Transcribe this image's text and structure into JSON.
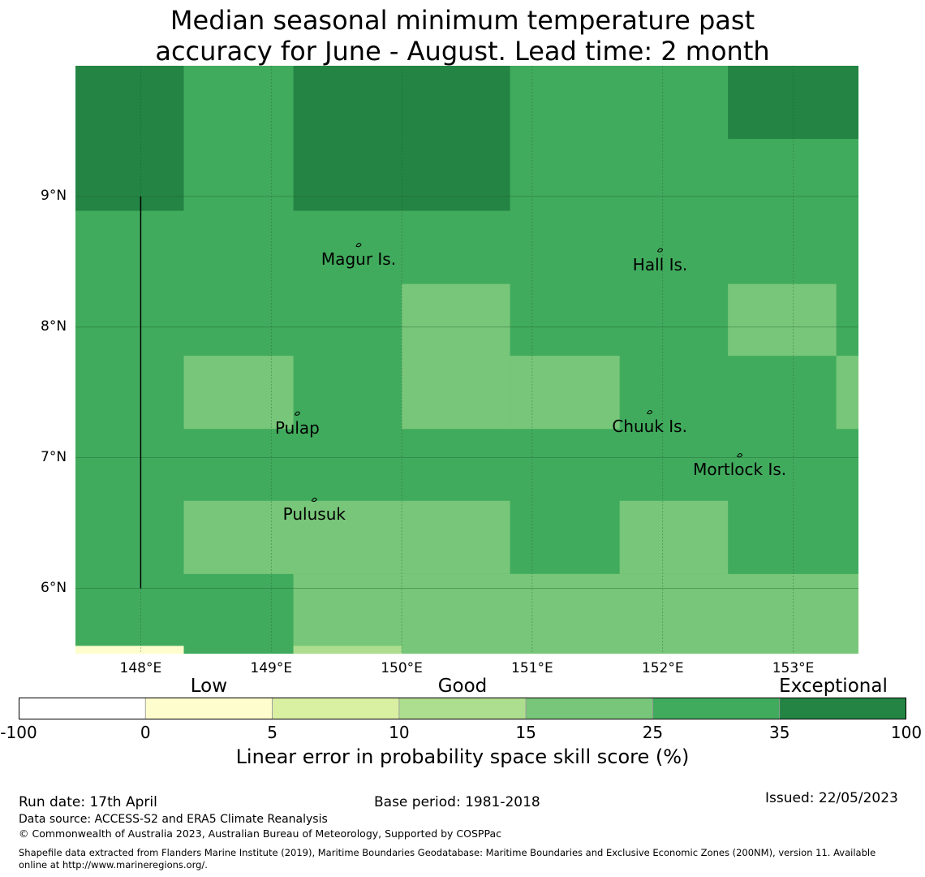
{
  "title_line1": "Median seasonal minimum temperature past",
  "title_line2": "accuracy for June - August. Lead time: 2 month",
  "colors": {
    "c_0_5": "#fdfdcd",
    "c_5_10": "#d9f0a3",
    "c_10_15": "#addd8e",
    "c_15_25": "#78c679",
    "c_25_35": "#41ab5d",
    "c_35_100": "#238443",
    "c_below0": "#ffffff"
  },
  "map": {
    "lon_range": [
      147.5,
      153.5
    ],
    "lat_range": [
      5.5,
      10.0
    ],
    "grid_cells": [
      {
        "lon": [
          147.5,
          148.33
        ],
        "lat": [
          8.89,
          10.0
        ],
        "class": "c_35_100"
      },
      {
        "lon": [
          149.17,
          150.83
        ],
        "lat": [
          8.89,
          10.0
        ],
        "class": "c_35_100"
      },
      {
        "lon": [
          152.5,
          153.5
        ],
        "lat": [
          9.44,
          10.0
        ],
        "class": "c_35_100"
      },
      {
        "lon": [
          150.0,
          150.83
        ],
        "lat": [
          7.22,
          8.33
        ],
        "class": "c_15_25"
      },
      {
        "lon": [
          152.5,
          153.33
        ],
        "lat": [
          7.78,
          8.33
        ],
        "class": "c_15_25"
      },
      {
        "lon": [
          148.33,
          149.17
        ],
        "lat": [
          7.22,
          7.78
        ],
        "class": "c_15_25"
      },
      {
        "lon": [
          150.83,
          151.67
        ],
        "lat": [
          7.22,
          7.78
        ],
        "class": "c_15_25"
      },
      {
        "lon": [
          153.33,
          153.5
        ],
        "lat": [
          7.22,
          7.78
        ],
        "class": "c_15_25"
      },
      {
        "lon": [
          148.33,
          150.83
        ],
        "lat": [
          6.11,
          6.67
        ],
        "class": "c_15_25"
      },
      {
        "lon": [
          151.67,
          152.5
        ],
        "lat": [
          6.11,
          6.67
        ],
        "class": "c_15_25"
      },
      {
        "lon": [
          149.17,
          153.5
        ],
        "lat": [
          5.5,
          6.11
        ],
        "class": "c_15_25"
      },
      {
        "lon": [
          150.83,
          152.5
        ],
        "lat": [
          5.5,
          6.11
        ],
        "class": "c_15_25"
      },
      {
        "lon": [
          147.5,
          148.33
        ],
        "lat": [
          5.5,
          5.56
        ],
        "class": "c_0_5"
      },
      {
        "lon": [
          149.17,
          150.0
        ],
        "lat": [
          5.5,
          5.56
        ],
        "class": "c_10_15"
      }
    ],
    "meridian_line": {
      "lon": 148.0,
      "lat": [
        6.0,
        9.0
      ]
    },
    "lat_labels": [
      {
        "lat": 9,
        "text": "9°N"
      },
      {
        "lat": 8,
        "text": "8°N"
      },
      {
        "lat": 7,
        "text": "7°N"
      },
      {
        "lat": 6,
        "text": "6°N"
      }
    ],
    "lon_labels": [
      {
        "lon": 148,
        "text": "148°E"
      },
      {
        "lon": 149,
        "text": "149°E"
      },
      {
        "lon": 150,
        "text": "150°E"
      },
      {
        "lon": 151,
        "text": "151°E"
      },
      {
        "lon": 152,
        "text": "152°E"
      },
      {
        "lon": 153,
        "text": "153°E"
      }
    ],
    "places": [
      {
        "name": "Magur Is.",
        "lon": 149.67,
        "lat": 8.52
      },
      {
        "name": "Hall Is.",
        "lon": 151.98,
        "lat": 8.48
      },
      {
        "name": "Pulap",
        "lon": 149.2,
        "lat": 7.23
      },
      {
        "name": "Chuuk Is.",
        "lon": 151.9,
        "lat": 7.24
      },
      {
        "name": "Mortlock Is.",
        "lon": 152.59,
        "lat": 6.91
      },
      {
        "name": "Pulusuk",
        "lon": 149.33,
        "lat": 6.57
      }
    ]
  },
  "colorbar": {
    "categories": [
      {
        "label": "Low",
        "at": 1.5
      },
      {
        "label": "Good",
        "at": 3.5
      },
      {
        "label": "Exceptional",
        "at": 6.5
      }
    ],
    "bins": [
      "c_below0",
      "c_0_5",
      "c_5_10",
      "c_10_15",
      "c_15_25",
      "c_25_35",
      "c_35_100"
    ],
    "ticks": [
      "-100",
      "0",
      "5",
      "10",
      "15",
      "25",
      "35",
      "100"
    ],
    "title": "Linear error in probability space skill score (%)"
  },
  "footer": {
    "run_date": "Run date: 17th April",
    "base_period": "Base period: 1981-2018",
    "issued": "Issued: 22/05/2023",
    "data_source": "Data source: ACCESS-S2 and ERA5 Climate Reanalysis",
    "copyright": "© Commonwealth of Australia 2023, Australian Bureau of Meteorology, Supported by COSPPac",
    "shapefile_line1": "Shapefile data extracted from Flanders Marine Institute (2019), Maritime Boundaries Geodatabase: Maritime Boundaries and Exclusive Economic Zones (200NM), version 11. Available",
    "shapefile_line2": "online at http://www.marineregions.org/."
  }
}
